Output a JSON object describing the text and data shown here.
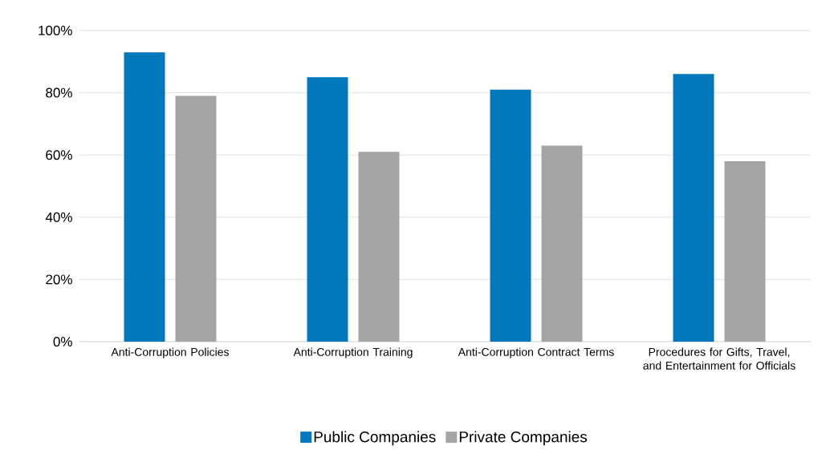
{
  "chart_data": {
    "type": "bar",
    "categories": [
      "Anti-Corruption Policies",
      "Anti-Corruption Training",
      "Anti-Corruption Contract Terms",
      "Procedures for Gifts, Travel, and Entertainment for Officials"
    ],
    "series": [
      {
        "name": "Public Companies",
        "color": "#0079bc",
        "values": [
          93,
          85,
          81,
          86
        ]
      },
      {
        "name": "Private Companies",
        "color": "#a5a5a5",
        "values": [
          79,
          61,
          63,
          58
        ]
      }
    ],
    "ylim": [
      0,
      100
    ],
    "yticks": [
      {
        "value": 0,
        "label": "0%"
      },
      {
        "value": 20,
        "label": "20%"
      },
      {
        "value": 40,
        "label": "40%"
      },
      {
        "value": 60,
        "label": "60%"
      },
      {
        "value": 80,
        "label": "80%"
      },
      {
        "value": 100,
        "label": "100%"
      }
    ],
    "grid": "y",
    "legend": "bottom"
  }
}
